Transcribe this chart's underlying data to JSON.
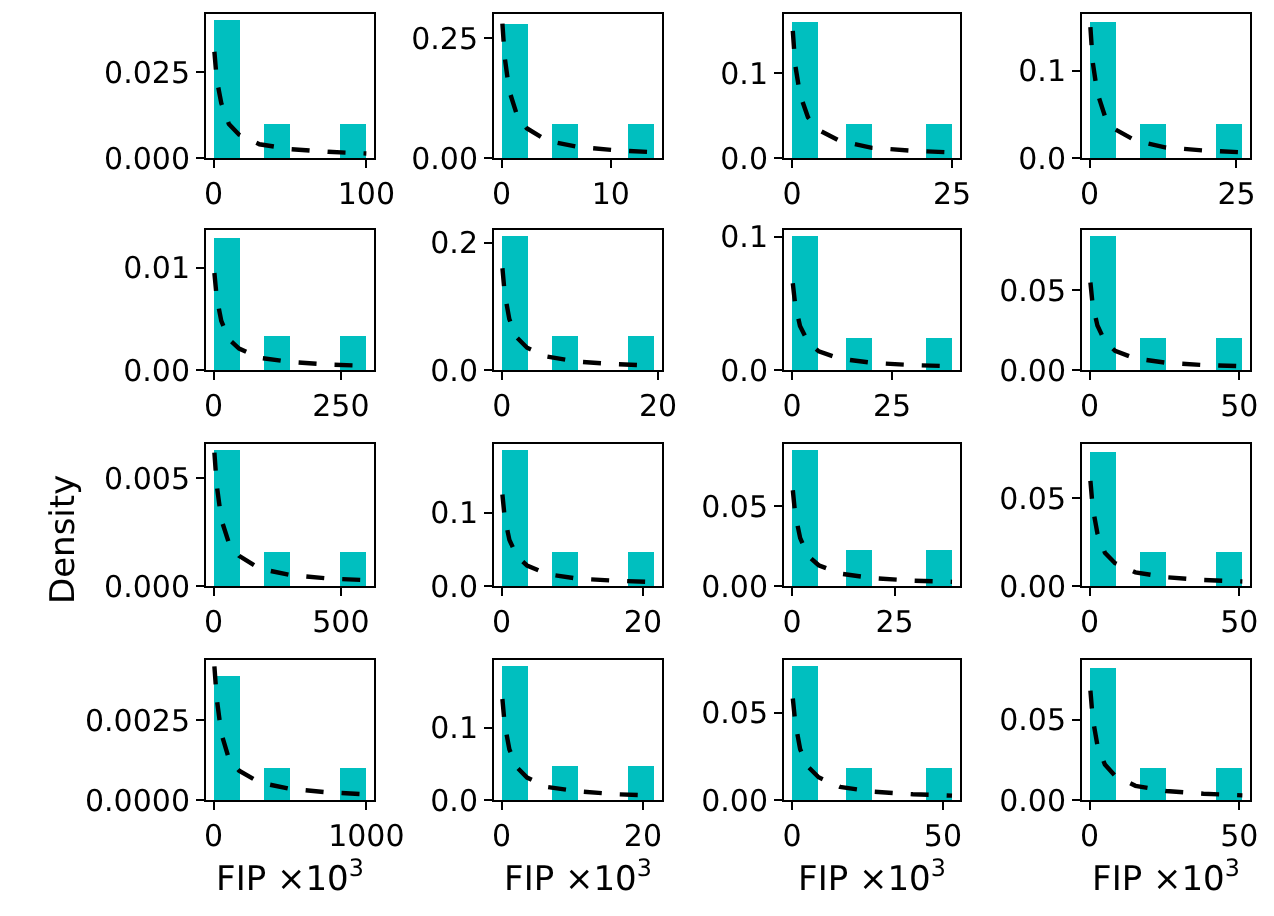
{
  "chart_data": [
    {
      "type": "histogram",
      "bins": [
        0,
        16.7,
        33.3,
        50,
        66.7,
        83.3,
        100
      ],
      "values": [
        0.04,
        0,
        0.01,
        0,
        0,
        0.01
      ],
      "color": "#00bfbf",
      "xlim": [
        -5,
        105
      ],
      "xticks": [
        0,
        100
      ],
      "ylim": [
        0,
        0.042
      ],
      "yticks": [
        {
          "value": 0,
          "label": "0.000"
        },
        {
          "value": 0.025,
          "label": "0.025"
        }
      ],
      "grid": false,
      "series": [
        {
          "type": "line",
          "line_style": "dashed",
          "color": "#000000",
          "x": [
            0.5,
            2,
            5,
            10,
            16.7,
            30,
            50,
            75,
            100
          ],
          "values": [
            0.031,
            0.023,
            0.016,
            0.0099,
            0.0068,
            0.004,
            0.0026,
            0.0018,
            0.0013
          ]
        }
      ]
    },
    {
      "type": "histogram",
      "bins": [
        0,
        2.33,
        4.67,
        7,
        9.33,
        11.67,
        14
      ],
      "values": [
        0.28,
        0,
        0.07,
        0,
        0,
        0.07
      ],
      "color": "#00bfbf",
      "xlim": [
        -0.7,
        14.7
      ],
      "xticks": [
        0,
        10
      ],
      "ylim": [
        0,
        0.3
      ],
      "yticks": [
        {
          "value": 0,
          "label": "0.00"
        },
        {
          "value": 0.25,
          "label": "0.25"
        }
      ],
      "grid": false,
      "series": [
        {
          "type": "line",
          "line_style": "dashed",
          "color": "#000000",
          "x": [
            0.07,
            0.28,
            0.7,
            1.4,
            2.3,
            4.2,
            7,
            10.5,
            14
          ],
          "values": [
            0.28,
            0.21,
            0.14,
            0.09,
            0.062,
            0.036,
            0.023,
            0.016,
            0.012
          ]
        }
      ]
    },
    {
      "type": "histogram",
      "bins": [
        0,
        4.17,
        8.33,
        12.5,
        16.67,
        20.83,
        25
      ],
      "values": [
        0.16,
        0,
        0.04,
        0,
        0,
        0.04
      ],
      "color": "#00bfbf",
      "xlim": [
        -1.25,
        26.25
      ],
      "xticks": [
        0,
        25
      ],
      "ylim": [
        0,
        0.17
      ],
      "yticks": [
        {
          "value": 0,
          "label": "0.0"
        },
        0.1
      ],
      "grid": false,
      "series": [
        {
          "type": "line",
          "line_style": "dashed",
          "color": "#000000",
          "x": [
            0.125,
            0.5,
            1.25,
            2.5,
            4.2,
            7.5,
            12.5,
            18.75,
            25
          ],
          "values": [
            0.15,
            0.11,
            0.075,
            0.048,
            0.033,
            0.02,
            0.012,
            0.0086,
            0.0065
          ]
        }
      ]
    },
    {
      "type": "histogram",
      "bins": [
        0,
        4.33,
        8.67,
        13,
        17.33,
        21.67,
        26
      ],
      "values": [
        0.155,
        0,
        0.038,
        0,
        0,
        0.038
      ],
      "color": "#00bfbf",
      "xlim": [
        -1.3,
        27.3
      ],
      "xticks": [
        0,
        25
      ],
      "ylim": [
        0,
        0.165
      ],
      "yticks": [
        {
          "value": 0,
          "label": "0.0"
        },
        0.1
      ],
      "grid": false,
      "series": [
        {
          "type": "line",
          "line_style": "dashed",
          "color": "#000000",
          "x": [
            0.13,
            0.52,
            1.3,
            2.6,
            4.3,
            7.8,
            13,
            19.5,
            26
          ],
          "values": [
            0.15,
            0.11,
            0.075,
            0.048,
            0.033,
            0.02,
            0.012,
            0.0086,
            0.0065
          ]
        }
      ]
    },
    {
      "type": "histogram",
      "bins": [
        0,
        50,
        100,
        150,
        200,
        250,
        300
      ],
      "values": [
        0.013,
        0,
        0.0033,
        0,
        0,
        0.0033
      ],
      "color": "#00bfbf",
      "xlim": [
        -15,
        315
      ],
      "xticks": [
        0,
        250
      ],
      "ylim": [
        0,
        0.0137
      ],
      "yticks": [
        {
          "value": 0,
          "label": "0.00"
        },
        0.01
      ],
      "grid": false,
      "series": [
        {
          "type": "line",
          "line_style": "dashed",
          "color": "#000000",
          "x": [
            1.5,
            6,
            15,
            30,
            50,
            90,
            150,
            225,
            300
          ],
          "values": [
            0.0095,
            0.0071,
            0.0048,
            0.003,
            0.0021,
            0.0012,
            0.00079,
            0.00054,
            0.00041
          ]
        }
      ]
    },
    {
      "type": "histogram",
      "bins": [
        0,
        3.25,
        6.5,
        9.75,
        13,
        16.25,
        19.5
      ],
      "values": [
        0.21,
        0,
        0.053,
        0,
        0,
        0.053
      ],
      "color": "#00bfbf",
      "xlim": [
        -0.98,
        20.5
      ],
      "xticks": [
        0,
        20
      ],
      "ylim": [
        0,
        0.22
      ],
      "yticks": [
        {
          "value": 0,
          "label": "0.0"
        },
        0.2
      ],
      "grid": false,
      "series": [
        {
          "type": "line",
          "line_style": "dashed",
          "color": "#000000",
          "x": [
            0.1,
            0.39,
            0.98,
            1.95,
            3.25,
            5.85,
            9.75,
            14.6,
            19.5
          ],
          "values": [
            0.16,
            0.12,
            0.08,
            0.051,
            0.035,
            0.021,
            0.013,
            0.0091,
            0.0069
          ]
        }
      ]
    },
    {
      "type": "histogram",
      "bins": [
        0,
        6.67,
        13.33,
        20,
        26.67,
        33.33,
        40
      ],
      "values": [
        0.1,
        0,
        0.024,
        0,
        0,
        0.024
      ],
      "color": "#00bfbf",
      "xlim": [
        -2,
        42
      ],
      "xticks": [
        0,
        25
      ],
      "ylim": [
        0,
        0.105
      ],
      "yticks": [
        {
          "value": 0,
          "label": "0.0"
        },
        0.1
      ],
      "grid": false,
      "series": [
        {
          "type": "line",
          "line_style": "dashed",
          "color": "#000000",
          "x": [
            0.2,
            0.8,
            2,
            4,
            6.7,
            12,
            20,
            30,
            40
          ],
          "values": [
            0.065,
            0.049,
            0.033,
            0.021,
            0.014,
            0.0085,
            0.0054,
            0.0037,
            0.0028
          ]
        }
      ]
    },
    {
      "type": "histogram",
      "bins": [
        0,
        8.5,
        17,
        25.5,
        34,
        42.5,
        51
      ],
      "values": [
        0.084,
        0,
        0.02,
        0,
        0,
        0.02
      ],
      "color": "#00bfbf",
      "xlim": [
        -2.55,
        53.55
      ],
      "xticks": [
        0,
        50
      ],
      "ylim": [
        0,
        0.088
      ],
      "yticks": [
        {
          "value": 0,
          "label": "0.00"
        },
        0.05
      ],
      "grid": false,
      "series": [
        {
          "type": "line",
          "line_style": "dashed",
          "color": "#000000",
          "x": [
            0.26,
            1,
            2.6,
            5.1,
            8.5,
            15.3,
            25.5,
            38,
            51
          ],
          "values": [
            0.055,
            0.041,
            0.028,
            0.018,
            0.012,
            0.0072,
            0.0046,
            0.0031,
            0.0024
          ]
        }
      ]
    },
    {
      "type": "histogram",
      "bins": [
        0,
        100,
        200,
        300,
        400,
        500,
        600
      ],
      "values": [
        0.0063,
        0,
        0.0016,
        0,
        0,
        0.0016
      ],
      "color": "#00bfbf",
      "xlim": [
        -30,
        630
      ],
      "xticks": [
        0,
        500
      ],
      "ylim": [
        0,
        0.0066
      ],
      "yticks": [
        {
          "value": 0,
          "label": "0.000"
        },
        0.005
      ],
      "grid": false,
      "ylabel": "Density",
      "series": [
        {
          "type": "line",
          "line_style": "dashed",
          "color": "#000000",
          "x": [
            3,
            12,
            30,
            60,
            100,
            180,
            300,
            450,
            600
          ],
          "values": [
            0.0062,
            0.0047,
            0.0031,
            0.002,
            0.0014,
            0.00081,
            0.00051,
            0.00035,
            0.00027
          ]
        }
      ]
    },
    {
      "type": "histogram",
      "bins": [
        0,
        3.6,
        7.2,
        10.8,
        14.4,
        18,
        21.6
      ],
      "values": [
        0.185,
        0,
        0.046,
        0,
        0,
        0.046
      ],
      "color": "#00bfbf",
      "xlim": [
        -1.08,
        22.7
      ],
      "xticks": [
        0,
        20
      ],
      "ylim": [
        0,
        0.194
      ],
      "yticks": [
        {
          "value": 0,
          "label": "0.0"
        },
        0.1
      ],
      "grid": false,
      "series": [
        {
          "type": "line",
          "line_style": "dashed",
          "color": "#000000",
          "x": [
            0.11,
            0.43,
            1.1,
            2.2,
            3.6,
            6.5,
            10.8,
            16.2,
            21.6
          ],
          "values": [
            0.125,
            0.094,
            0.063,
            0.04,
            0.028,
            0.016,
            0.01,
            0.0071,
            0.0054
          ]
        }
      ]
    },
    {
      "type": "histogram",
      "bins": [
        0,
        6.5,
        13,
        19.5,
        26,
        32.5,
        39
      ],
      "values": [
        0.085,
        0,
        0.022,
        0,
        0,
        0.022
      ],
      "color": "#00bfbf",
      "xlim": [
        -1.95,
        40.95
      ],
      "xticks": [
        0,
        25
      ],
      "ylim": [
        0,
        0.089
      ],
      "yticks": [
        {
          "value": 0,
          "label": "0.00"
        },
        0.05
      ],
      "grid": false,
      "series": [
        {
          "type": "line",
          "line_style": "dashed",
          "color": "#000000",
          "x": [
            0.2,
            0.78,
            2,
            3.9,
            6.5,
            11.7,
            19.5,
            29,
            39
          ],
          "values": [
            0.06,
            0.045,
            0.03,
            0.019,
            0.013,
            0.0078,
            0.005,
            0.0034,
            0.0026
          ]
        }
      ]
    },
    {
      "type": "histogram",
      "bins": [
        0,
        8.5,
        17,
        25.5,
        34,
        42.5,
        51
      ],
      "values": [
        0.077,
        0,
        0.019,
        0,
        0,
        0.019
      ],
      "color": "#00bfbf",
      "xlim": [
        -2.55,
        53.55
      ],
      "xticks": [
        0,
        50
      ],
      "ylim": [
        0,
        0.081
      ],
      "yticks": [
        {
          "value": 0,
          "label": "0.00"
        },
        0.05
      ],
      "grid": false,
      "series": [
        {
          "type": "line",
          "line_style": "dashed",
          "color": "#000000",
          "x": [
            0.26,
            1,
            2.6,
            5.1,
            8.5,
            15.3,
            25.5,
            38,
            51
          ],
          "values": [
            0.06,
            0.045,
            0.03,
            0.019,
            0.013,
            0.0078,
            0.005,
            0.0034,
            0.0026
          ]
        }
      ]
    },
    {
      "type": "histogram",
      "bins": [
        0,
        166.7,
        333.3,
        500,
        666.7,
        833.3,
        1000
      ],
      "values": [
        0.0039,
        0,
        0.001,
        0,
        0,
        0.001
      ],
      "color": "#00bfbf",
      "xlim": [
        -50,
        1050
      ],
      "xticks": [
        0,
        1000
      ],
      "ylim": [
        0,
        0.0044
      ],
      "yticks": [
        {
          "value": 0,
          "label": "0.0000"
        },
        {
          "value": 0.0025,
          "label": "0.0025"
        }
      ],
      "grid": false,
      "xlabel": "FIP ×10$^{3}$",
      "series": [
        {
          "type": "line",
          "line_style": "dashed",
          "color": "#000000",
          "x": [
            5,
            20,
            50,
            100,
            167,
            300,
            500,
            750,
            1000
          ],
          "values": [
            0.0042,
            0.0032,
            0.0021,
            0.0013,
            0.00092,
            0.00055,
            0.00035,
            0.00024,
            0.00018
          ]
        }
      ]
    },
    {
      "type": "histogram",
      "bins": [
        0,
        3.6,
        7.2,
        10.8,
        14.4,
        18,
        21.6
      ],
      "values": [
        0.185,
        0,
        0.046,
        0,
        0,
        0.046
      ],
      "color": "#00bfbf",
      "xlim": [
        -1.08,
        22.7
      ],
      "xticks": [
        0,
        20
      ],
      "ylim": [
        0,
        0.194
      ],
      "yticks": [
        {
          "value": 0,
          "label": "0.0"
        },
        0.1
      ],
      "grid": false,
      "xlabel": "FIP ×10$^{3}$",
      "series": [
        {
          "type": "line",
          "line_style": "dashed",
          "color": "#000000",
          "x": [
            0.11,
            0.43,
            1.1,
            2.2,
            3.6,
            6.5,
            10.8,
            16.2,
            21.6
          ],
          "values": [
            0.14,
            0.105,
            0.07,
            0.045,
            0.031,
            0.018,
            0.012,
            0.008,
            0.006
          ]
        }
      ]
    },
    {
      "type": "histogram",
      "bins": [
        0,
        8.83,
        17.67,
        26.5,
        35.33,
        44.17,
        53
      ],
      "values": [
        0.0765,
        0,
        0.0186,
        0,
        0,
        0.0186
      ],
      "color": "#00bfbf",
      "xlim": [
        -2.65,
        55.65
      ],
      "xticks": [
        0,
        50
      ],
      "ylim": [
        0,
        0.08
      ],
      "yticks": [
        {
          "value": 0,
          "label": "0.00"
        },
        0.05
      ],
      "grid": false,
      "xlabel": "FIP ×10$^{3}$",
      "series": [
        {
          "type": "line",
          "line_style": "dashed",
          "color": "#000000",
          "x": [
            0.27,
            1.1,
            2.7,
            5.3,
            8.8,
            15.9,
            26.5,
            40,
            53
          ],
          "values": [
            0.058,
            0.044,
            0.029,
            0.019,
            0.013,
            0.0075,
            0.0048,
            0.0033,
            0.0025
          ]
        }
      ]
    },
    {
      "type": "histogram",
      "bins": [
        0,
        8.5,
        17,
        25.5,
        34,
        42.5,
        51
      ],
      "values": [
        0.0825,
        0,
        0.02,
        0,
        0,
        0.02
      ],
      "color": "#00bfbf",
      "xlim": [
        -2.55,
        53.55
      ],
      "xticks": [
        0,
        50
      ],
      "ylim": [
        0,
        0.087
      ],
      "yticks": [
        {
          "value": 0,
          "label": "0.00"
        },
        0.05
      ],
      "grid": false,
      "xlabel": "FIP ×10$^{3}$",
      "series": [
        {
          "type": "line",
          "line_style": "dashed",
          "color": "#000000",
          "x": [
            0.26,
            1,
            2.6,
            5.1,
            8.5,
            15.3,
            25.5,
            38,
            51
          ],
          "values": [
            0.068,
            0.051,
            0.034,
            0.022,
            0.015,
            0.0088,
            0.0056,
            0.0039,
            0.0029
          ]
        }
      ]
    }
  ]
}
